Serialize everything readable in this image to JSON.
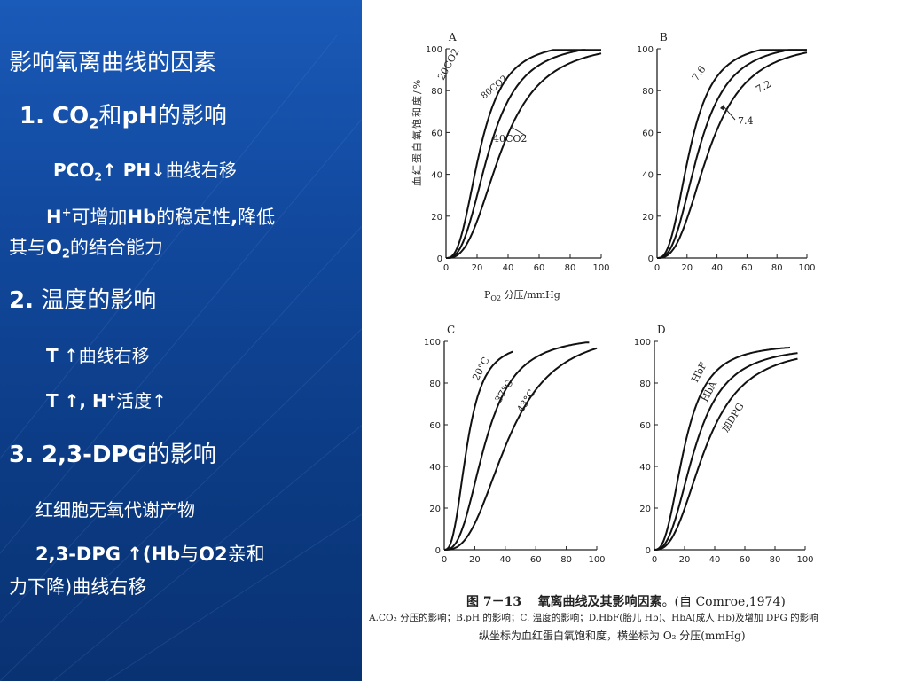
{
  "slide": {
    "title": "影响氧离曲线的因素",
    "s1": {
      "num": "1. CO",
      "sub": "2",
      "rest1": "和",
      "rest2": "pH",
      "rest3": "的影响",
      "l1a": "PCO",
      "l1sub": "2",
      "l1b": "↑  PH",
      "l1c": "↓曲线右移",
      "l2a": "H",
      "l2sup": "+",
      "l2b": "可增加",
      "l2c": "Hb",
      "l2d": "的稳定性",
      "l2e": ",",
      "l2f": "降低",
      "l3a": "其与",
      "l3b": "O",
      "l3sub": "2",
      "l3c": "的结合能力"
    },
    "s2": {
      "num": "2.",
      "rest": " 温度的影响",
      "l1a": "T",
      "l1b": " ↑曲线右移",
      "l2a": "T",
      "l2b": " ↑, H",
      "l2sup": "+",
      "l2c": "活度↑"
    },
    "s3": {
      "head": "3. 2,3-DPG",
      "rest": "的影响",
      "l1": "红细胞无氧代谢产物",
      "l2a": "2,3-DPG ",
      "l2b": "↑(Hb",
      "l2c": "与",
      "l2d": "O2",
      "l2e": "亲和",
      "l3a": "力下降",
      "l3b": ")曲线右移"
    }
  },
  "figure": {
    "ylabel": "血红蛋白氧饱和度/%",
    "xlabel_p": "P",
    "xlabel_sub": "O2",
    "xlabel_rest": " 分压/mmHg",
    "caption_fig": "图 7－13",
    "caption_title": "氧离曲线及其影响因素",
    "caption_src": "。(自 Comroe,1974)",
    "caption_line2": "A.CO₂ 分压的影响；B.pH 的影响；C. 温度的影响；D.HbF(胎儿 Hb)、HbA(成人 Hb)及增加 DPG 的影响",
    "caption_line3": "纵坐标为血红蛋白氧饱和度，横坐标为 O₂ 分压(mmHg)"
  },
  "chart_data": [
    {
      "type": "line",
      "panel": "A",
      "xlim": [
        0,
        100
      ],
      "ylim": [
        0,
        100
      ],
      "xticks": [
        "0",
        "20",
        "40",
        "60",
        "80",
        "100"
      ],
      "yticks": [
        "0",
        "20",
        "40",
        "60",
        "80",
        "100"
      ],
      "series": [
        {
          "name": "20CO2",
          "p50": 22,
          "n": 2.7,
          "x": [
            0,
            10,
            20,
            30,
            40,
            50,
            60,
            70,
            80,
            90
          ],
          "y": [
            0,
            11,
            44,
            66,
            79,
            87,
            91,
            94,
            96,
            97
          ]
        },
        {
          "name": "40CO2",
          "p50": 28,
          "n": 2.7,
          "x": [
            0,
            10,
            20,
            30,
            40,
            50,
            60,
            70,
            80,
            90,
            100
          ],
          "y": [
            0,
            6,
            29,
            52,
            68,
            78,
            85,
            89,
            92,
            94,
            95
          ]
        },
        {
          "name": "80CO2",
          "p50": 36,
          "n": 2.7,
          "x": [
            0,
            10,
            20,
            30,
            40,
            50,
            60,
            70,
            80,
            90,
            100
          ],
          "y": [
            0,
            3,
            17,
            38,
            56,
            68,
            77,
            83,
            87,
            90,
            92
          ]
        }
      ]
    },
    {
      "type": "line",
      "panel": "B",
      "xlim": [
        0,
        100
      ],
      "ylim": [
        0,
        100
      ],
      "xticks": [
        "0",
        "20",
        "40",
        "60",
        "80",
        "100"
      ],
      "yticks": [
        "0",
        "20",
        "40",
        "60",
        "80",
        "100"
      ],
      "series": [
        {
          "name": "7.6",
          "p50": 22,
          "n": 2.7,
          "x": [
            0,
            10,
            20,
            30,
            40,
            50,
            60,
            70,
            80,
            90,
            100
          ],
          "y": [
            0,
            11,
            44,
            66,
            79,
            87,
            91,
            94,
            96,
            97,
            98
          ]
        },
        {
          "name": "7.4",
          "p50": 28,
          "n": 2.7,
          "x": [
            0,
            10,
            20,
            30,
            40,
            50,
            60,
            70,
            80,
            90,
            100
          ],
          "y": [
            0,
            6,
            29,
            52,
            68,
            78,
            85,
            89,
            92,
            94,
            95
          ]
        },
        {
          "name": "7.2",
          "p50": 35,
          "n": 2.7,
          "x": [
            0,
            10,
            20,
            30,
            40,
            50,
            60,
            70,
            80,
            90,
            100
          ],
          "y": [
            0,
            3,
            18,
            40,
            58,
            70,
            78,
            84,
            88,
            91,
            93
          ]
        }
      ]
    },
    {
      "type": "line",
      "panel": "C",
      "xlim": [
        0,
        100
      ],
      "ylim": [
        0,
        100
      ],
      "xticks": [
        "0",
        "20",
        "40",
        "60",
        "80",
        "100"
      ],
      "yticks": [
        "0",
        "20",
        "40",
        "60",
        "80",
        "100"
      ],
      "series": [
        {
          "name": "20°C",
          "p50": 15,
          "n": 2.7,
          "x": [
            0,
            10,
            20,
            30,
            40,
            45
          ],
          "y": [
            0,
            25,
            70,
            87,
            93,
            94
          ]
        },
        {
          "name": "37°C",
          "p50": 27,
          "n": 2.7,
          "x": [
            0,
            10,
            20,
            30,
            40,
            50,
            60,
            70,
            80,
            90,
            95
          ],
          "y": [
            0,
            7,
            31,
            56,
            73,
            83,
            89,
            93,
            95,
            96,
            97
          ]
        },
        {
          "name": "43°C",
          "p50": 42,
          "n": 2.7,
          "x": [
            0,
            10,
            20,
            30,
            40,
            50,
            60,
            70,
            80,
            90,
            100
          ],
          "y": [
            0,
            2,
            11,
            28,
            46,
            60,
            71,
            78,
            83,
            86,
            89
          ]
        }
      ]
    },
    {
      "type": "line",
      "panel": "D",
      "xlim": [
        0,
        100
      ],
      "ylim": [
        0,
        100
      ],
      "xticks": [
        "0",
        "20",
        "40",
        "60",
        "80",
        "100"
      ],
      "yticks": [
        "0",
        "20",
        "40",
        "60",
        "80",
        "100"
      ],
      "series": [
        {
          "name": "HbF",
          "p50": 20,
          "n": 2.6,
          "x": [
            0,
            10,
            20,
            30,
            40,
            50,
            60,
            70,
            80,
            90
          ],
          "y": [
            0,
            15,
            48,
            71,
            82,
            88,
            92,
            94,
            95,
            96
          ]
        },
        {
          "name": "HbA",
          "p50": 27,
          "n": 2.6,
          "x": [
            0,
            10,
            20,
            30,
            40,
            50,
            60,
            70,
            80,
            90,
            95
          ],
          "y": [
            0,
            8,
            33,
            56,
            71,
            80,
            85,
            88,
            90,
            91,
            92
          ]
        },
        {
          "name": "加DPG",
          "p50": 34,
          "n": 2.6,
          "x": [
            0,
            10,
            20,
            30,
            40,
            50,
            60,
            70,
            80,
            90,
            95
          ],
          "y": [
            0,
            4,
            21,
            42,
            58,
            69,
            76,
            81,
            84,
            86,
            87
          ]
        }
      ]
    }
  ]
}
